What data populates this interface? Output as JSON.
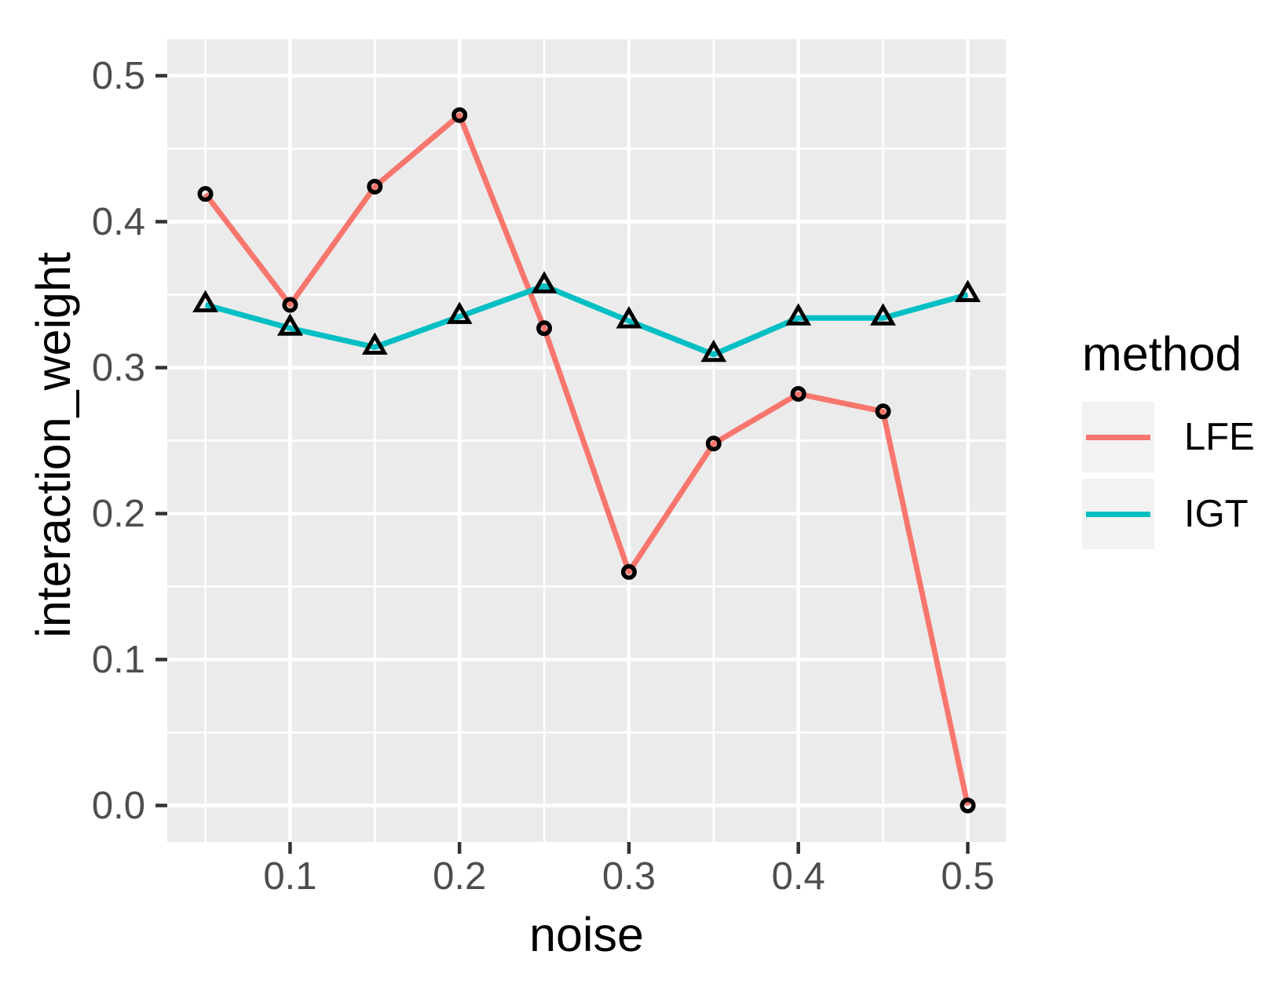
{
  "chart_data": {
    "type": "line",
    "x": [
      0.05,
      0.1,
      0.15,
      0.2,
      0.25,
      0.3,
      0.35,
      0.4,
      0.45,
      0.5
    ],
    "series": [
      {
        "name": "LFE",
        "color": "#F8766D",
        "marker": "circle",
        "values": [
          0.419,
          0.343,
          0.424,
          0.473,
          0.327,
          0.16,
          0.248,
          0.282,
          0.27,
          0.0
        ]
      },
      {
        "name": "IGT",
        "color": "#00BFC4",
        "marker": "triangle",
        "values": [
          0.343,
          0.327,
          0.314,
          0.335,
          0.356,
          0.332,
          0.309,
          0.334,
          0.334,
          0.35
        ]
      }
    ],
    "title": "",
    "xlabel": "noise",
    "ylabel": "interaction_weight",
    "xlim": [
      0.0275,
      0.5225
    ],
    "ylim": [
      -0.025,
      0.525
    ],
    "x_ticks": {
      "values": [
        0.1,
        0.2,
        0.3,
        0.4,
        0.5
      ],
      "labels": [
        "0.1",
        "0.2",
        "0.3",
        "0.4",
        "0.5"
      ]
    },
    "x_minor": [
      0.05,
      0.15,
      0.25,
      0.35,
      0.45
    ],
    "y_ticks": {
      "values": [
        0.0,
        0.1,
        0.2,
        0.3,
        0.4,
        0.5
      ],
      "labels": [
        "0.0",
        "0.1",
        "0.2",
        "0.3",
        "0.4",
        "0.5"
      ]
    },
    "y_minor": [
      0.05,
      0.15,
      0.25,
      0.35,
      0.45
    ],
    "grid": "on",
    "legend": {
      "title": "method",
      "position": "right",
      "entries": [
        {
          "label": "LFE"
        },
        {
          "label": "IGT"
        }
      ]
    },
    "colors": {
      "panel_background": "#EBEBEB",
      "gridline": "#FFFFFF",
      "tick_mark": "#333333",
      "tick_label": "#4D4D4D",
      "axis_title": "#000000",
      "legend_key_background": "#F2F2F2",
      "marker_stroke": "#000000"
    }
  }
}
